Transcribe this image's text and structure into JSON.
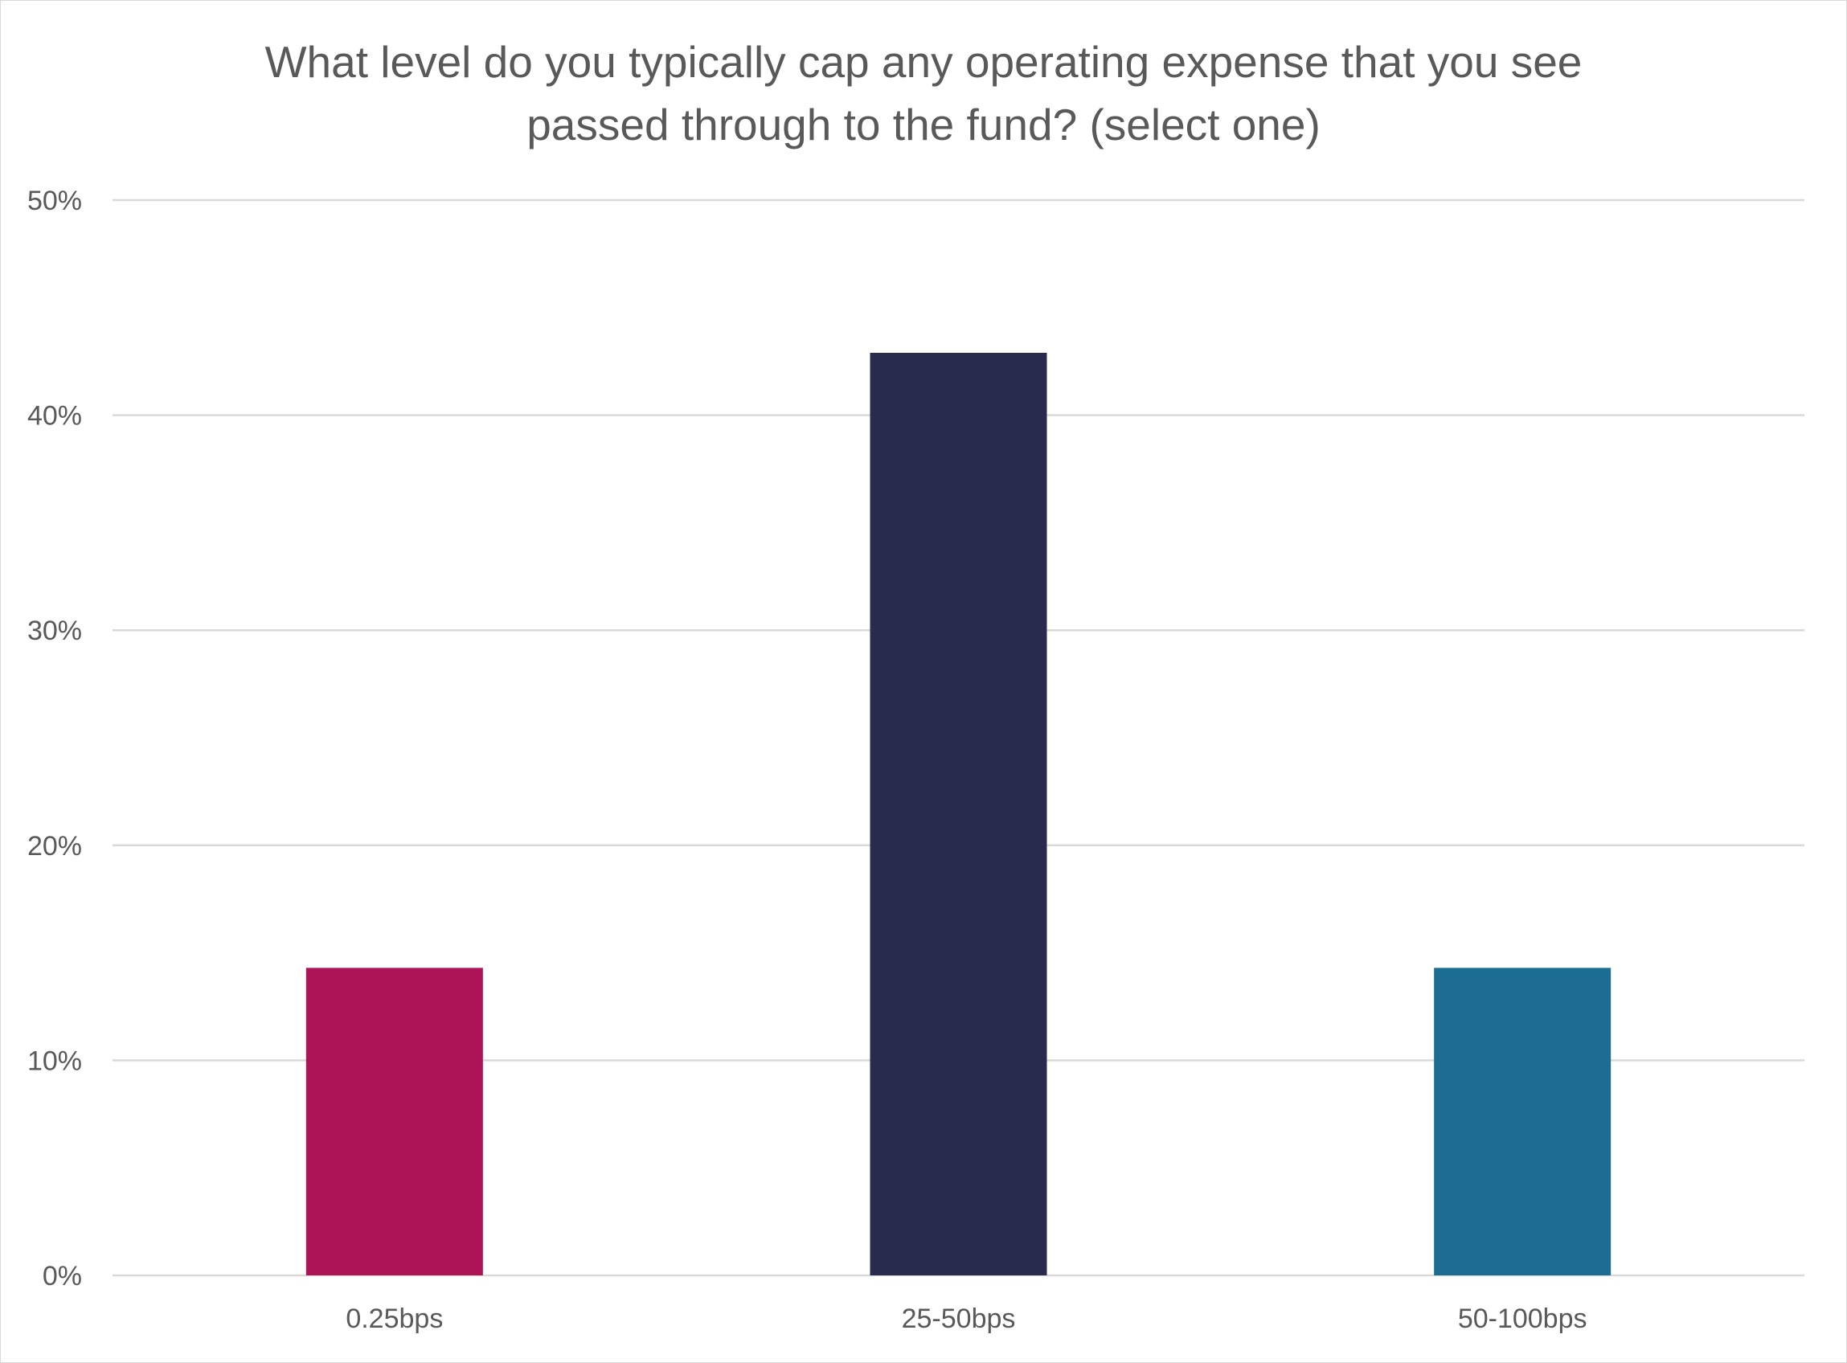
{
  "chart_data": {
    "type": "bar",
    "title": "What level do you typically cap any operating expense that you see passed through to the fund? (select one)",
    "title_lines": [
      "What level do you typically cap any operating expense that you see",
      "passed through to the fund? (select one)"
    ],
    "xlabel": "",
    "ylabel": "",
    "categories": [
      "0.25bps",
      "25-50bps",
      "50-100bps"
    ],
    "values": [
      14.3,
      42.9,
      14.3
    ],
    "colors": [
      "#AD1457",
      "#282A4E",
      "#1C6D91"
    ],
    "ylim": [
      0,
      50
    ],
    "yticks": [
      0,
      10,
      20,
      30,
      40,
      50
    ],
    "ytick_labels": [
      "0%",
      "10%",
      "20%",
      "30%",
      "40%",
      "50%"
    ],
    "grid": true,
    "legend": "none"
  }
}
